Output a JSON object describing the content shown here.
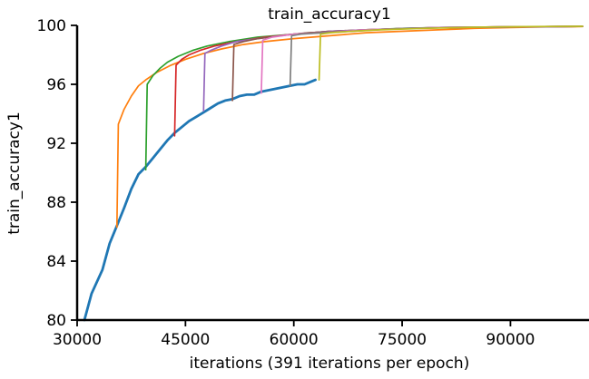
{
  "chart_data": {
    "type": "line",
    "title": "train_accuracy1",
    "xlabel": "iterations (391 iterations per epoch)",
    "ylabel": "train_accuracy1",
    "xlim": [
      30000,
      100000
    ],
    "ylim": [
      80,
      100
    ],
    "xticks": [
      30000,
      45000,
      60000,
      75000,
      90000
    ],
    "yticks": [
      80,
      84,
      88,
      92,
      96,
      100
    ],
    "grid": false,
    "legend": "none",
    "series": [
      {
        "color": "#1f77b4",
        "points": [
          [
            31000,
            80.0
          ],
          [
            32000,
            81.8
          ],
          [
            33500,
            83.4
          ],
          [
            34500,
            85.2
          ],
          [
            35500,
            86.4
          ],
          [
            36500,
            87.6
          ],
          [
            37500,
            88.9
          ],
          [
            38500,
            89.9
          ],
          [
            39500,
            90.4
          ],
          [
            40500,
            91.0
          ],
          [
            41500,
            91.6
          ],
          [
            42500,
            92.2
          ],
          [
            43500,
            92.7
          ],
          [
            44500,
            93.1
          ],
          [
            45500,
            93.5
          ],
          [
            46500,
            93.8
          ],
          [
            47500,
            94.1
          ],
          [
            48500,
            94.4
          ],
          [
            49500,
            94.7
          ],
          [
            50500,
            94.9
          ],
          [
            51500,
            95.0
          ],
          [
            52500,
            95.2
          ],
          [
            53500,
            95.3
          ],
          [
            54500,
            95.3
          ],
          [
            55500,
            95.5
          ],
          [
            56500,
            95.6
          ],
          [
            57500,
            95.7
          ],
          [
            58500,
            95.8
          ],
          [
            59500,
            95.9
          ],
          [
            60500,
            96.0
          ],
          [
            61500,
            96.0
          ],
          [
            62500,
            96.2
          ],
          [
            63000,
            96.3
          ]
        ]
      },
      {
        "color": "#ff7f0e",
        "points": [
          [
            35500,
            86.3
          ],
          [
            35700,
            93.3
          ],
          [
            36500,
            94.3
          ],
          [
            37500,
            95.2
          ],
          [
            38500,
            95.9
          ],
          [
            39500,
            96.3
          ],
          [
            41000,
            96.8
          ],
          [
            43000,
            97.3
          ],
          [
            45000,
            97.7
          ],
          [
            47500,
            98.1
          ],
          [
            50000,
            98.4
          ],
          [
            53000,
            98.7
          ],
          [
            56000,
            98.9
          ],
          [
            60000,
            99.1
          ],
          [
            65000,
            99.3
          ],
          [
            70000,
            99.5
          ],
          [
            75000,
            99.6
          ],
          [
            80000,
            99.7
          ],
          [
            85000,
            99.8
          ],
          [
            90000,
            99.85
          ],
          [
            95000,
            99.9
          ],
          [
            100000,
            99.92
          ]
        ]
      },
      {
        "color": "#2ca02c",
        "points": [
          [
            39500,
            90.2
          ],
          [
            39700,
            96.0
          ],
          [
            40500,
            96.6
          ],
          [
            41500,
            97.1
          ],
          [
            42500,
            97.5
          ],
          [
            44000,
            97.9
          ],
          [
            46000,
            98.3
          ],
          [
            48000,
            98.6
          ],
          [
            51000,
            98.9
          ],
          [
            55000,
            99.2
          ],
          [
            60000,
            99.4
          ],
          [
            65000,
            99.6
          ],
          [
            70000,
            99.7
          ],
          [
            75000,
            99.8
          ],
          [
            80000,
            99.85
          ],
          [
            90000,
            99.9
          ],
          [
            100000,
            99.93
          ]
        ]
      },
      {
        "color": "#d62728",
        "points": [
          [
            43500,
            92.5
          ],
          [
            43700,
            97.3
          ],
          [
            44500,
            97.7
          ],
          [
            45500,
            98.0
          ],
          [
            47000,
            98.3
          ],
          [
            49000,
            98.6
          ],
          [
            52000,
            98.9
          ],
          [
            56000,
            99.2
          ],
          [
            60000,
            99.4
          ],
          [
            65000,
            99.6
          ],
          [
            70000,
            99.7
          ],
          [
            80000,
            99.85
          ],
          [
            90000,
            99.9
          ],
          [
            100000,
            99.93
          ]
        ]
      },
      {
        "color": "#9467bd",
        "points": [
          [
            47500,
            94.2
          ],
          [
            47700,
            98.1
          ],
          [
            48500,
            98.3
          ],
          [
            50000,
            98.6
          ],
          [
            52000,
            98.9
          ],
          [
            55000,
            99.1
          ],
          [
            60000,
            99.4
          ],
          [
            65000,
            99.6
          ],
          [
            70000,
            99.7
          ],
          [
            80000,
            99.85
          ],
          [
            90000,
            99.9
          ],
          [
            100000,
            99.93
          ]
        ]
      },
      {
        "color": "#8c564b",
        "points": [
          [
            51500,
            94.9
          ],
          [
            51700,
            98.7
          ],
          [
            53000,
            98.9
          ],
          [
            55000,
            99.1
          ],
          [
            58000,
            99.3
          ],
          [
            62000,
            99.5
          ],
          [
            67000,
            99.6
          ],
          [
            75000,
            99.8
          ],
          [
            85000,
            99.88
          ],
          [
            100000,
            99.93
          ]
        ]
      },
      {
        "color": "#e377c2",
        "points": [
          [
            55500,
            95.4
          ],
          [
            55700,
            99.0
          ],
          [
            57000,
            99.2
          ],
          [
            60000,
            99.4
          ],
          [
            64000,
            99.5
          ],
          [
            70000,
            99.7
          ],
          [
            80000,
            99.85
          ],
          [
            90000,
            99.9
          ],
          [
            100000,
            99.93
          ]
        ]
      },
      {
        "color": "#7f7f7f",
        "points": [
          [
            59500,
            95.9
          ],
          [
            59700,
            99.3
          ],
          [
            61000,
            99.4
          ],
          [
            64000,
            99.5
          ],
          [
            68000,
            99.6
          ],
          [
            75000,
            99.8
          ],
          [
            85000,
            99.88
          ],
          [
            100000,
            99.93
          ]
        ]
      },
      {
        "color": "#bcbd22",
        "points": [
          [
            63500,
            96.3
          ],
          [
            63700,
            99.4
          ],
          [
            65000,
            99.5
          ],
          [
            68000,
            99.6
          ],
          [
            72000,
            99.7
          ],
          [
            78000,
            99.8
          ],
          [
            85000,
            99.88
          ],
          [
            92000,
            99.92
          ],
          [
            100000,
            99.94
          ]
        ]
      }
    ]
  }
}
